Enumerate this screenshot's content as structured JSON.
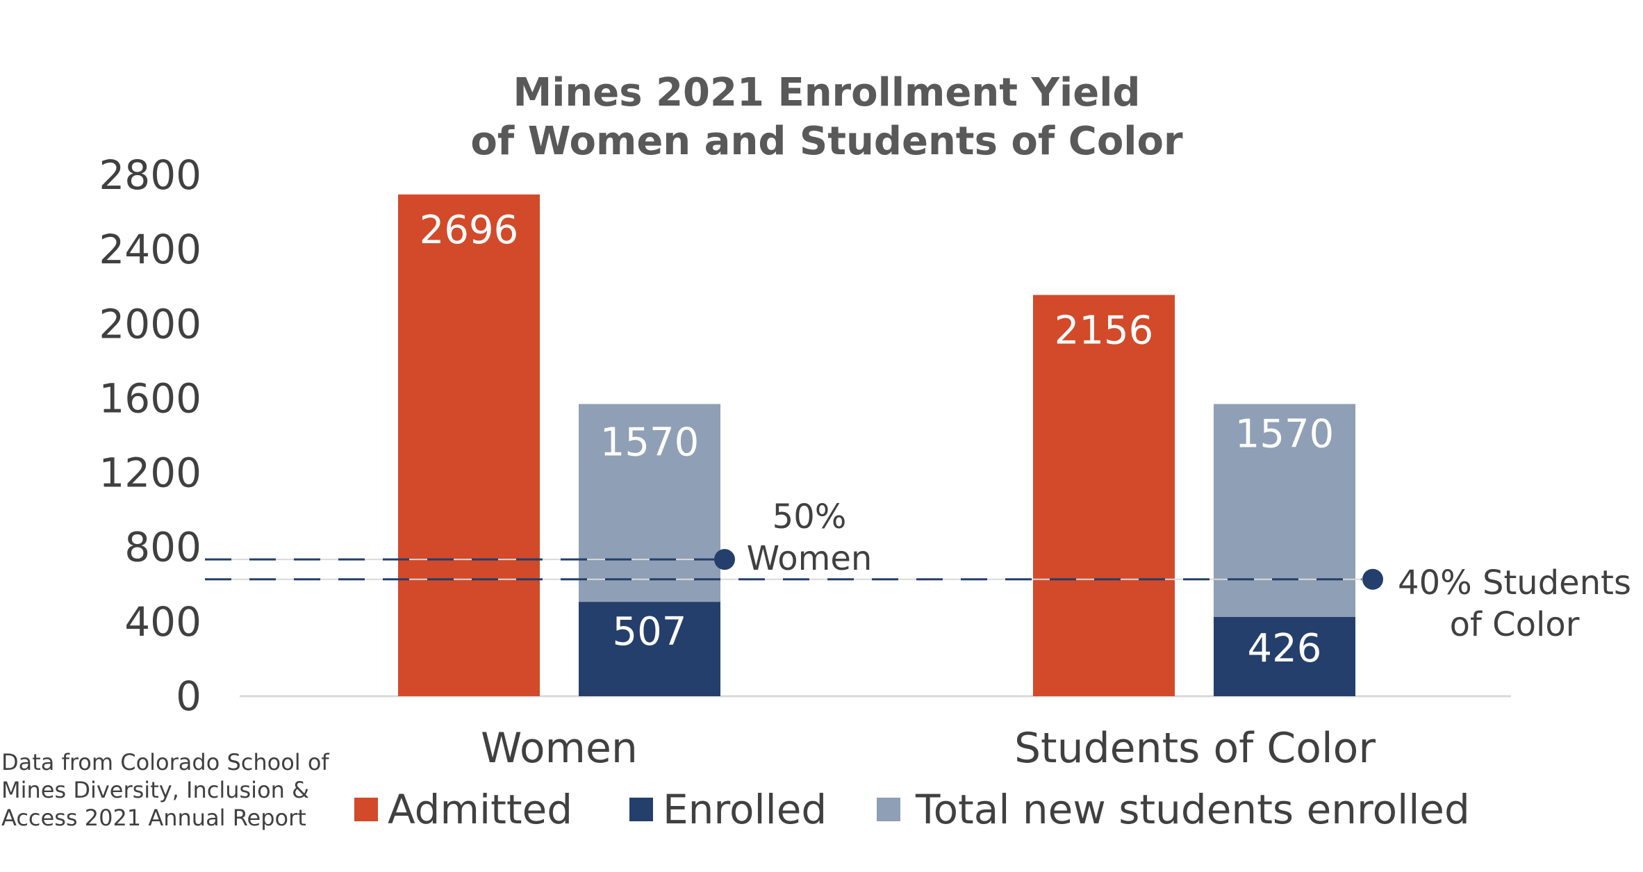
{
  "chart_data": {
    "type": "bar",
    "title_lines": [
      "Mines 2021 Enrollment Yield",
      "of Women and Students of Color"
    ],
    "categories": [
      "Women",
      "Students of Color"
    ],
    "ylim": [
      0,
      2800
    ],
    "yticks": [
      "0",
      "400",
      "800",
      "1200",
      "1600",
      "2000",
      "2400",
      "2800"
    ],
    "ytick_values": [
      0,
      400,
      800,
      1200,
      1600,
      2000,
      2400,
      2800
    ],
    "series": [
      {
        "name": "Admitted",
        "color": "#d24a2a",
        "values": [
          2696,
          2156
        ],
        "labels": [
          "2696",
          "2156"
        ]
      },
      {
        "name": "Enrolled",
        "color": "#243f6b",
        "values": [
          507,
          426
        ],
        "labels": [
          "507",
          "426"
        ]
      },
      {
        "name": "Total new students enrolled",
        "color": "#8f9fb5",
        "values": [
          1570,
          1570
        ],
        "labels": [
          "1570",
          "1570"
        ]
      }
    ],
    "stacked_pairs": "Enrolled stacked under Total new students enrolled",
    "reference_lines": [
      {
        "value": 735,
        "label_lines": [
          "50%",
          "Women"
        ],
        "color": "#243f6b"
      },
      {
        "value": 628,
        "label_lines": [
          "40% Students",
          "of Color"
        ],
        "color": "#243f6b"
      }
    ],
    "legend_position": "bottom",
    "grid": false
  },
  "source_note_lines": [
    "Data from Colorado School of",
    "Mines Diversity, Inclusion &",
    "Access 2021 Annual Report"
  ]
}
